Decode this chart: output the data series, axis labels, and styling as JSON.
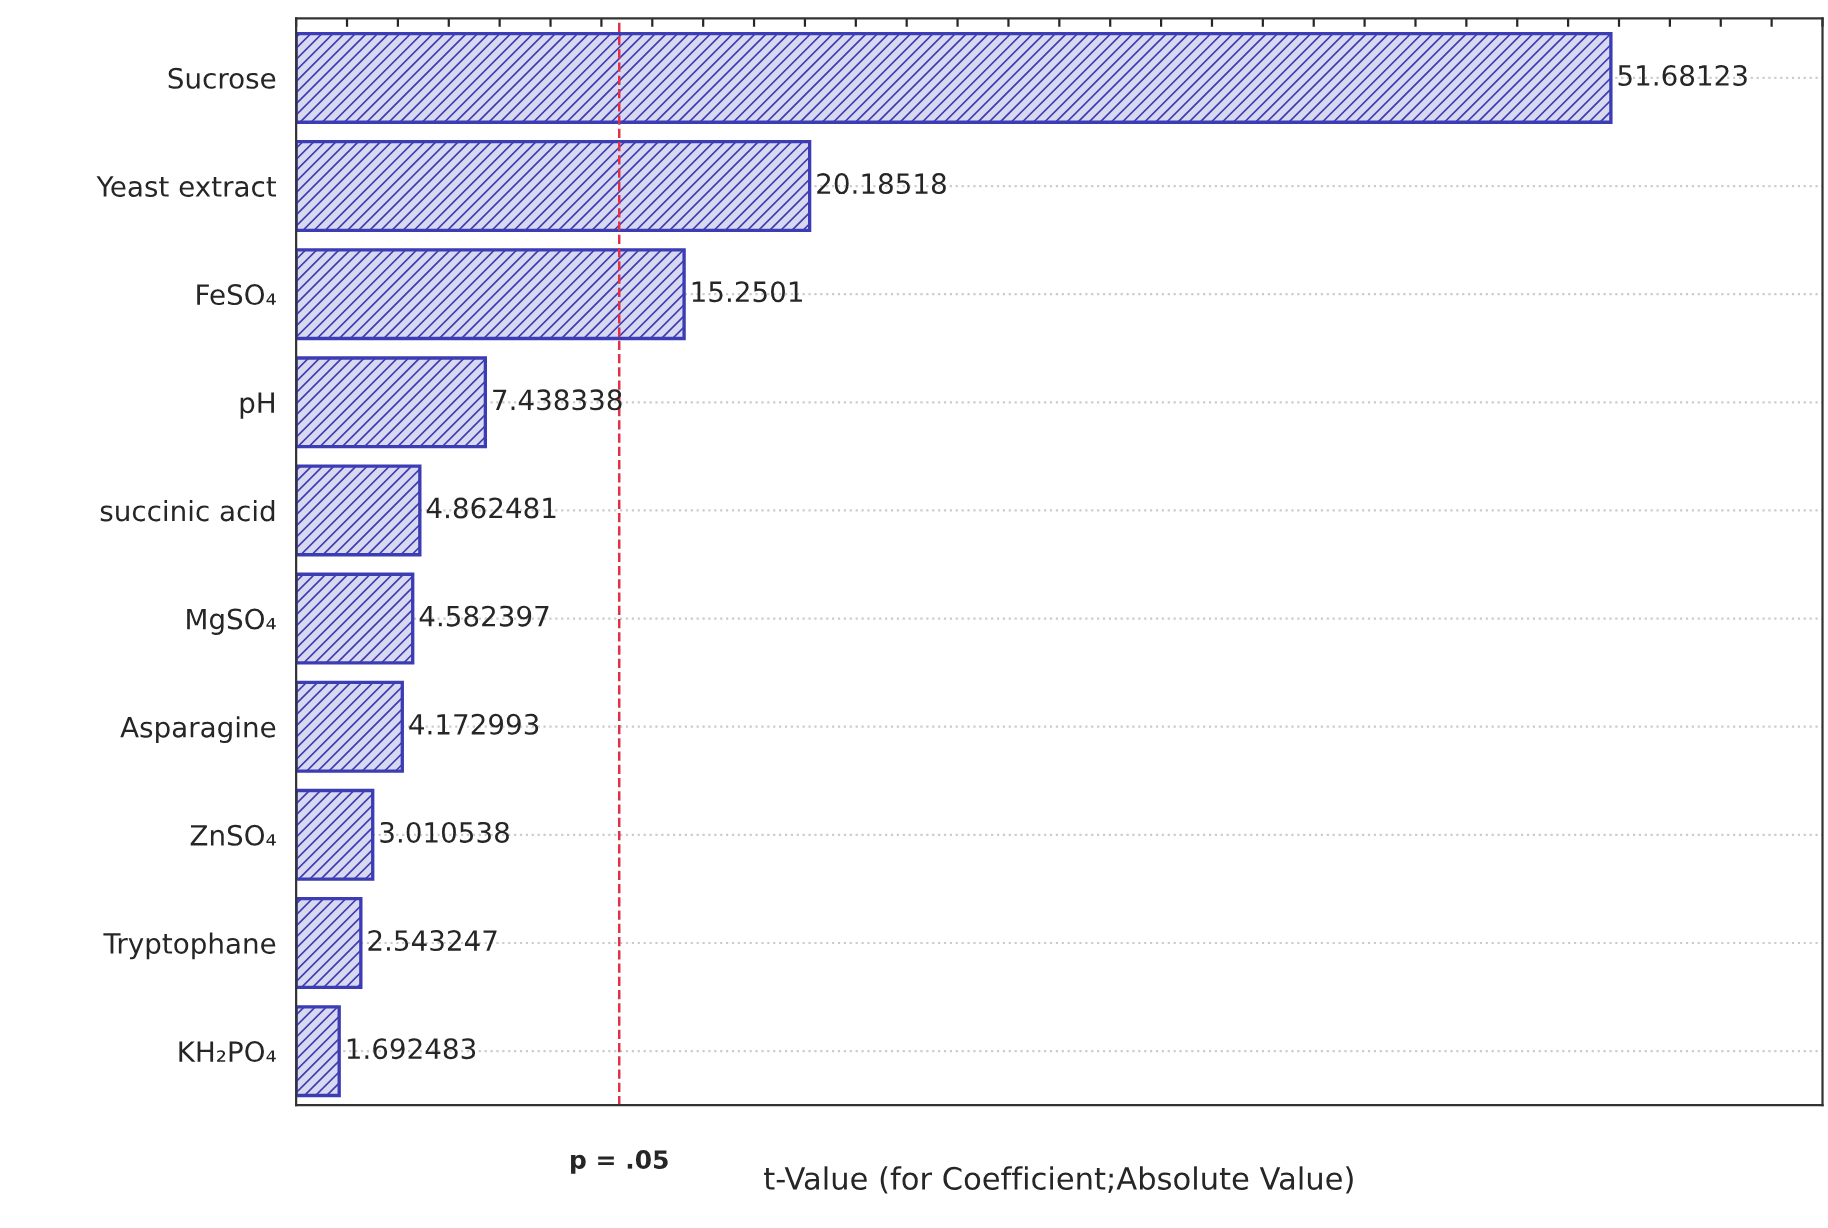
{
  "chart_data": {
    "type": "bar",
    "orientation": "horizontal",
    "xlabel": "t-Value (for Coefficient;Absolute Value)",
    "categories": [
      "Sucrose",
      "Yeast extract",
      "FeSO₄",
      "pH",
      "succinic acid",
      "MgSO₄",
      "Asparagine",
      "ZnSO₄",
      "Tryptophane",
      "KH₂PO₄"
    ],
    "values": [
      51.68123,
      20.18518,
      15.2501,
      7.438338,
      4.862481,
      4.582397,
      4.172993,
      3.010538,
      2.543247,
      1.692483
    ],
    "color": "#3c3cb4",
    "xlim": [
      0,
      60
    ],
    "tick_labels": "y",
    "grid": "y",
    "data_labels": true,
    "ref_lines": [
      {
        "axis": "x",
        "value": 12.7,
        "label": "p = .05",
        "color": "#e0304a",
        "line_style": "dashed"
      }
    ]
  }
}
